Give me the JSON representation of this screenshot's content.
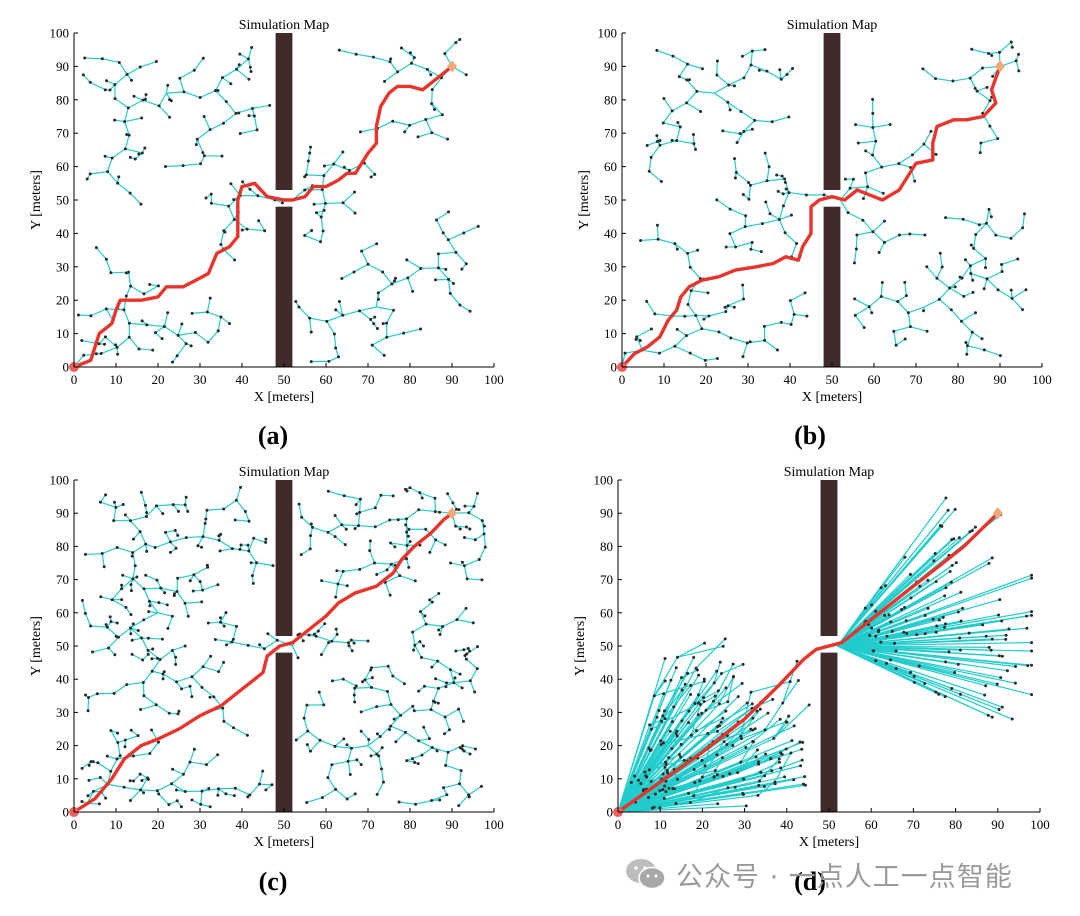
{
  "figure": {
    "colors": {
      "tree_edge": "#22cccc",
      "node": "#2a2a2a",
      "path": "#e8342a",
      "obstacle": "#402a2a",
      "start": "#f06060",
      "goal": "#f0a878",
      "axis": "#000000"
    }
  },
  "watermark": {
    "text": "公众号 · 一点人工一点智能",
    "icon": "wechat-icon"
  },
  "chart_data": [
    {
      "type": "scatter",
      "panel": "(a)",
      "title": "Simulation Map",
      "xlabel": "X [meters]",
      "ylabel": "Y [meters]",
      "xlim": [
        0,
        100
      ],
      "ylim": [
        0,
        100
      ],
      "xticks": [
        0,
        10,
        20,
        30,
        40,
        50,
        60,
        70,
        80,
        90,
        100
      ],
      "yticks": [
        0,
        10,
        20,
        30,
        40,
        50,
        60,
        70,
        80,
        90,
        100
      ],
      "start": [
        0,
        0
      ],
      "goal": [
        90,
        90
      ],
      "obstacles": [
        [
          48,
          53,
          52,
          100
        ],
        [
          48,
          0,
          52,
          48
        ]
      ],
      "tree_style": "sparse",
      "tree_seed": 11,
      "path": [
        [
          0,
          0
        ],
        [
          4,
          2
        ],
        [
          6,
          10
        ],
        [
          9,
          13
        ],
        [
          10,
          17
        ],
        [
          11,
          20
        ],
        [
          16,
          20
        ],
        [
          20,
          21
        ],
        [
          22,
          24
        ],
        [
          26,
          24
        ],
        [
          29,
          26
        ],
        [
          32,
          28
        ],
        [
          34,
          34
        ],
        [
          37,
          36
        ],
        [
          39,
          39
        ],
        [
          39,
          45
        ],
        [
          39,
          50
        ],
        [
          40,
          54
        ],
        [
          43,
          55
        ],
        [
          46,
          51
        ],
        [
          50,
          50
        ],
        [
          52,
          50
        ],
        [
          55,
          51
        ],
        [
          57,
          54
        ],
        [
          60,
          54
        ],
        [
          63,
          56
        ],
        [
          65,
          58
        ],
        [
          67,
          58
        ],
        [
          69,
          62
        ],
        [
          70,
          64
        ],
        [
          72,
          67
        ],
        [
          72,
          72
        ],
        [
          73,
          78
        ],
        [
          75,
          82
        ],
        [
          77,
          84
        ],
        [
          80,
          84
        ],
        [
          83,
          83
        ],
        [
          86,
          86
        ],
        [
          90,
          90
        ]
      ]
    },
    {
      "type": "scatter",
      "panel": "(b)",
      "title": "Simulation Map",
      "xlabel": "X [meters]",
      "ylabel": "Y [meters]",
      "xlim": [
        0,
        100
      ],
      "ylim": [
        0,
        100
      ],
      "xticks": [
        0,
        10,
        20,
        30,
        40,
        50,
        60,
        70,
        80,
        90,
        100
      ],
      "yticks": [
        0,
        10,
        20,
        30,
        40,
        50,
        60,
        70,
        80,
        90,
        100
      ],
      "start": [
        0,
        0
      ],
      "goal": [
        90,
        90
      ],
      "obstacles": [
        [
          48,
          53,
          52,
          100
        ],
        [
          48,
          0,
          52,
          48
        ]
      ],
      "tree_style": "sparse",
      "tree_seed": 27,
      "path": [
        [
          0,
          0
        ],
        [
          3,
          4
        ],
        [
          6,
          6
        ],
        [
          9,
          9
        ],
        [
          11,
          14
        ],
        [
          13,
          17
        ],
        [
          14,
          21
        ],
        [
          16,
          24
        ],
        [
          19,
          26
        ],
        [
          23,
          27
        ],
        [
          27,
          29
        ],
        [
          32,
          30
        ],
        [
          36,
          31
        ],
        [
          39,
          33
        ],
        [
          42,
          32
        ],
        [
          43,
          36
        ],
        [
          45,
          40
        ],
        [
          45,
          44
        ],
        [
          45,
          48
        ],
        [
          47,
          50
        ],
        [
          50,
          51
        ],
        [
          53,
          50
        ],
        [
          56,
          53
        ],
        [
          58,
          52
        ],
        [
          62,
          50
        ],
        [
          66,
          53
        ],
        [
          68,
          57
        ],
        [
          70,
          61
        ],
        [
          74,
          62
        ],
        [
          74,
          67
        ],
        [
          75,
          72
        ],
        [
          79,
          74
        ],
        [
          82,
          74
        ],
        [
          86,
          75
        ],
        [
          89,
          79
        ],
        [
          88,
          83
        ],
        [
          90,
          90
        ]
      ]
    },
    {
      "type": "scatter",
      "panel": "(c)",
      "title": "Simulation Map",
      "xlabel": "X [meters]",
      "ylabel": "Y [meters]",
      "xlim": [
        0,
        100
      ],
      "ylim": [
        0,
        100
      ],
      "xticks": [
        0,
        10,
        20,
        30,
        40,
        50,
        60,
        70,
        80,
        90,
        100
      ],
      "yticks": [
        0,
        10,
        20,
        30,
        40,
        50,
        60,
        70,
        80,
        90,
        100
      ],
      "start": [
        0,
        0
      ],
      "goal": [
        90,
        90
      ],
      "obstacles": [
        [
          48,
          53,
          52,
          100
        ],
        [
          48,
          0,
          52,
          48
        ]
      ],
      "tree_style": "dense",
      "tree_seed": 53,
      "path": [
        [
          0,
          0
        ],
        [
          5,
          4
        ],
        [
          9,
          10
        ],
        [
          12,
          16
        ],
        [
          16,
          20
        ],
        [
          20,
          22
        ],
        [
          25,
          25
        ],
        [
          30,
          29
        ],
        [
          35,
          32
        ],
        [
          40,
          37
        ],
        [
          45,
          42
        ],
        [
          46,
          47
        ],
        [
          49,
          50
        ],
        [
          52,
          51
        ],
        [
          56,
          55
        ],
        [
          60,
          59
        ],
        [
          63,
          63
        ],
        [
          67,
          66
        ],
        [
          72,
          68
        ],
        [
          76,
          72
        ],
        [
          78,
          76
        ],
        [
          81,
          80
        ],
        [
          85,
          84
        ],
        [
          88,
          88
        ],
        [
          90,
          90
        ]
      ]
    },
    {
      "type": "scatter",
      "panel": "(d)",
      "title": "Simulation Map",
      "xlabel": "X [meters]",
      "ylabel": "Y [meters]",
      "xlim": [
        0,
        100
      ],
      "ylim": [
        0,
        100
      ],
      "xticks": [
        0,
        10,
        20,
        30,
        40,
        50,
        60,
        70,
        80,
        90,
        100
      ],
      "yticks": [
        0,
        10,
        20,
        30,
        40,
        50,
        60,
        70,
        80,
        90,
        100
      ],
      "start": [
        0,
        0
      ],
      "goal": [
        90,
        90
      ],
      "obstacles": [
        [
          48,
          53,
          52,
          100
        ],
        [
          48,
          0,
          52,
          48
        ]
      ],
      "tree_style": "fan",
      "tree_seed": 71,
      "path": [
        [
          0,
          0
        ],
        [
          10,
          9
        ],
        [
          20,
          18
        ],
        [
          30,
          28
        ],
        [
          38,
          38
        ],
        [
          44,
          46
        ],
        [
          47,
          49
        ],
        [
          50,
          50
        ],
        [
          53,
          51
        ],
        [
          57,
          55
        ],
        [
          62,
          60
        ],
        [
          67,
          65
        ],
        [
          72,
          70
        ],
        [
          77,
          75
        ],
        [
          82,
          80
        ],
        [
          86,
          85
        ],
        [
          90,
          90
        ]
      ]
    }
  ]
}
